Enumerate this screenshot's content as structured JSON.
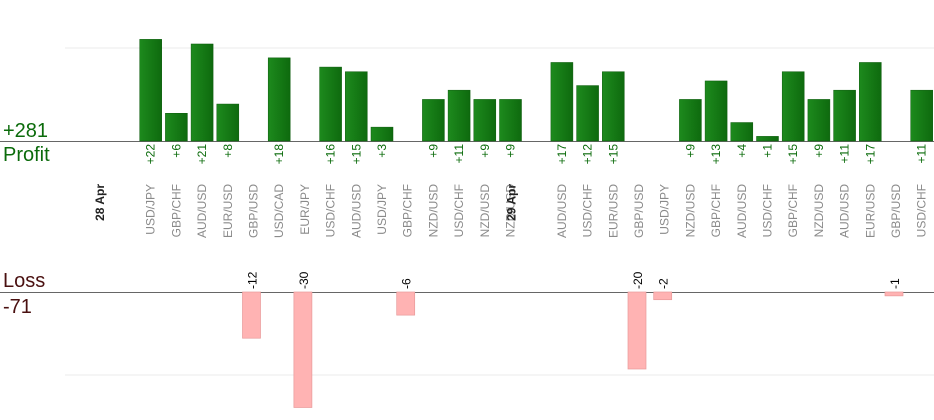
{
  "labels": {
    "profit_total": "+281",
    "profit_label": "Profit",
    "loss_label": "Loss",
    "loss_total": "-71"
  },
  "colors": {
    "profit_bar": "#0e6a0e",
    "profit_text": "#0b6b0b",
    "loss_bar": "#ffb3b3",
    "loss_text": "#000000",
    "pair_text": "#8a8a8a",
    "date_text": "#222222",
    "axis": "#666666",
    "grid": "#ebebeb"
  },
  "chart_data": {
    "type": "bar",
    "grid": true,
    "dates": [
      {
        "label": "28 Apr",
        "slot": 0
      },
      {
        "label": "29 Apr",
        "slot": 16
      }
    ],
    "trades": [
      {
        "pair": "USD/JPY",
        "value": 22
      },
      {
        "pair": "GBP/CHF",
        "value": 6
      },
      {
        "pair": "AUD/USD",
        "value": 21
      },
      {
        "pair": "EUR/USD",
        "value": 8
      },
      {
        "pair": "GBP/USD",
        "value": -12
      },
      {
        "pair": "USD/CAD",
        "value": 18
      },
      {
        "pair": "EUR/JPY",
        "value": -30
      },
      {
        "pair": "USD/CHF",
        "value": 16
      },
      {
        "pair": "AUD/USD",
        "value": 15
      },
      {
        "pair": "USD/JPY",
        "value": 3
      },
      {
        "pair": "GBP/CHF",
        "value": -6
      },
      {
        "pair": "NZD/USD",
        "value": 9
      },
      {
        "pair": "USD/CHF",
        "value": 11
      },
      {
        "pair": "NZD/USD",
        "value": 9
      },
      {
        "pair": "NZD/USD",
        "value": 9
      },
      {
        "pair": "AUD/USD",
        "value": 17
      },
      {
        "pair": "USD/CHF",
        "value": 12
      },
      {
        "pair": "EUR/USD",
        "value": 15
      },
      {
        "pair": "GBP/USD",
        "value": -20
      },
      {
        "pair": "USD/JPY",
        "value": -2
      },
      {
        "pair": "NZD/USD",
        "value": 9
      },
      {
        "pair": "GBP/CHF",
        "value": 13
      },
      {
        "pair": "AUD/USD",
        "value": 4
      },
      {
        "pair": "USD/CHF",
        "value": 1
      },
      {
        "pair": "GBP/CHF",
        "value": 15
      },
      {
        "pair": "NZD/USD",
        "value": 9
      },
      {
        "pair": "AUD/USD",
        "value": 11
      },
      {
        "pair": "EUR/USD",
        "value": 17
      },
      {
        "pair": "GBP/USD",
        "value": -1
      },
      {
        "pair": "USD/CHF",
        "value": 11
      }
    ]
  }
}
